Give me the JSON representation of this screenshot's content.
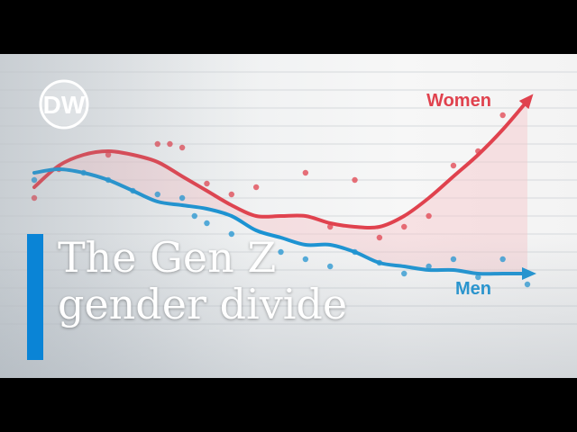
{
  "brand": {
    "logo_text": "DW"
  },
  "headline": {
    "line1": "The Gen Z",
    "line2": "gender divide"
  },
  "colors": {
    "women": "#e0424e",
    "men": "#1a93d3",
    "accent_bar": "#0a84d6",
    "band": "#f6c6c9"
  },
  "chart_data": {
    "type": "line",
    "x": [
      0,
      1,
      2,
      3,
      4,
      5,
      6,
      7,
      8,
      9,
      10,
      11,
      12,
      13,
      14,
      15,
      16,
      17,
      18,
      19,
      20
    ],
    "series": [
      {
        "name": "Women",
        "values": [
          58,
          64,
          67,
          68,
          67,
          65,
          61,
          57,
          53,
          50,
          50,
          50,
          48,
          47,
          47,
          50,
          55,
          61,
          67,
          74,
          82
        ],
        "points": [
          [
            0,
            55
          ],
          [
            1,
            63
          ],
          [
            3,
            67
          ],
          [
            5,
            70
          ],
          [
            5.5,
            70
          ],
          [
            6,
            69
          ],
          [
            7,
            59
          ],
          [
            8,
            56
          ],
          [
            9,
            58
          ],
          [
            11,
            62
          ],
          [
            12,
            47
          ],
          [
            13,
            60
          ],
          [
            14,
            44
          ],
          [
            15,
            47
          ],
          [
            16,
            50
          ],
          [
            17,
            64
          ],
          [
            18,
            68
          ],
          [
            19,
            78
          ]
        ]
      },
      {
        "name": "Men",
        "values": [
          62,
          63,
          62,
          60,
          57,
          54,
          53,
          52,
          50,
          46,
          44,
          42,
          42,
          40,
          37,
          36,
          35,
          35,
          34,
          34,
          34
        ],
        "points": [
          [
            0,
            60
          ],
          [
            2,
            62
          ],
          [
            3,
            60
          ],
          [
            4,
            57
          ],
          [
            5,
            56
          ],
          [
            6,
            55
          ],
          [
            6.5,
            50
          ],
          [
            7,
            48
          ],
          [
            8,
            45
          ],
          [
            10,
            40
          ],
          [
            11,
            38
          ],
          [
            12,
            36
          ],
          [
            13,
            40
          ],
          [
            14,
            37
          ],
          [
            15,
            34
          ],
          [
            16,
            36
          ],
          [
            17,
            38
          ],
          [
            18,
            33
          ],
          [
            19,
            38
          ],
          [
            20,
            31
          ]
        ]
      }
    ],
    "ylim": [
      20,
      90
    ],
    "grid": true,
    "legend": "inline labels at line ends"
  }
}
